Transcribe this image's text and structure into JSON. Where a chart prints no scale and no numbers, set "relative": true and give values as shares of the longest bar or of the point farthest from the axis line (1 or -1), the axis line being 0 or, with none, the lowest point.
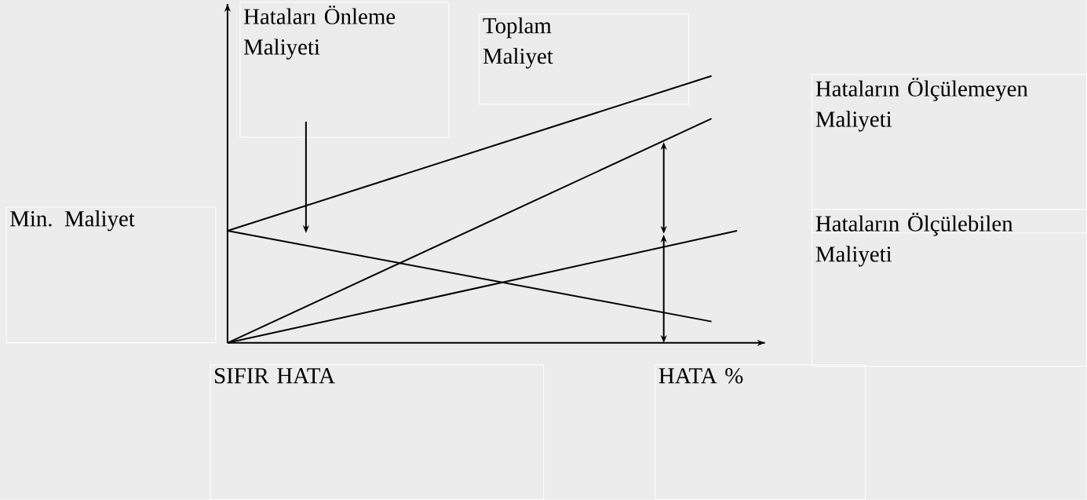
{
  "chart_data": {
    "type": "line",
    "relative": true,
    "tick_labels": false,
    "marker": "none",
    "line_style": "solid",
    "categories": [
      null,
      null,
      null,
      null,
      null,
      null,
      null,
      null,
      null,
      null,
      null,
      null,
      null,
      null,
      null,
      null,
      null,
      null,
      null,
      null,
      null
    ],
    "series": [
      {
        "color": "#000000",
        "values": [
          0.42,
          null,
          null,
          null,
          null,
          null,
          null,
          null,
          null,
          null,
          null,
          null,
          null,
          null,
          null,
          null,
          null,
          null,
          null,
          1,
          null
        ]
      },
      {
        "color": "#000000",
        "values": [
          0,
          null,
          null,
          null,
          null,
          null,
          null,
          null,
          null,
          null,
          null,
          null,
          null,
          null,
          null,
          null,
          null,
          null,
          null,
          0.84,
          null
        ]
      },
      {
        "color": "#000000",
        "values": [
          0,
          null,
          null,
          null,
          null,
          null,
          null,
          null,
          null,
          null,
          null,
          null,
          null,
          null,
          null,
          null,
          null,
          null,
          null,
          null,
          0.42
        ]
      },
      {
        "color": "#000000",
        "values": [
          0.42,
          null,
          null,
          null,
          null,
          null,
          null,
          null,
          null,
          null,
          null,
          null,
          null,
          null,
          null,
          null,
          null,
          null,
          null,
          0.08,
          null
        ]
      }
    ],
    "annotations": [
      "Hataları Önleme Maliyeti",
      "Toplam Maliyet",
      "Hataların Ölçülemeyen Maliyeti",
      "Min. Maliyet",
      "Hataların Ölçülebilen Maliyeti",
      "SIFIR HATA",
      "HATA %"
    ]
  }
}
